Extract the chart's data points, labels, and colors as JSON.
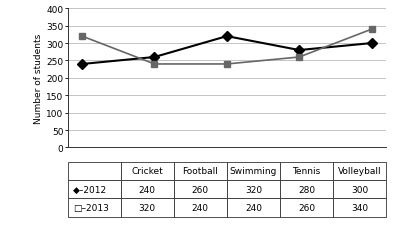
{
  "categories": [
    "Cricket",
    "Football",
    "Swimming",
    "Tennis",
    "Volleyball"
  ],
  "series": [
    {
      "label": "◆–2012",
      "values": [
        240,
        260,
        320,
        280,
        300
      ],
      "color": "#000000",
      "marker": "D",
      "markersize": 5,
      "linestyle": "-",
      "linewidth": 1.5
    },
    {
      "label": "□–2013",
      "values": [
        320,
        240,
        240,
        260,
        340
      ],
      "color": "#666666",
      "marker": "s",
      "markersize": 5,
      "linestyle": "-",
      "linewidth": 1.2
    }
  ],
  "ylabel": "Number of students",
  "ylim": [
    0,
    400
  ],
  "yticks": [
    0,
    50,
    100,
    150,
    200,
    250,
    300,
    350,
    400
  ],
  "table_rows": [
    [
      "◆–2012",
      "240",
      "260",
      "320",
      "280",
      "300"
    ],
    [
      "□–2013",
      "320",
      "240",
      "240",
      "260",
      "340"
    ]
  ],
  "col_headers": [
    "",
    "Cricket",
    "Football",
    "Swimming",
    "Tennis",
    "Volleyball"
  ],
  "background_color": "#ffffff",
  "figsize": [
    3.98,
    2.32
  ],
  "dpi": 100
}
